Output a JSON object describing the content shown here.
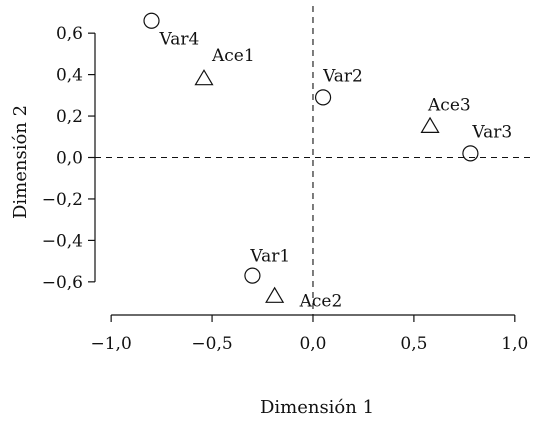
{
  "chart_data": {
    "type": "scatter",
    "title": "",
    "xlabel": "Dimensión 1",
    "ylabel": "Dimensión 2",
    "xlim": [
      -1.08,
      1.1
    ],
    "ylim": [
      -0.76,
      0.76
    ],
    "grid": false,
    "reference_lines": {
      "x": 0.0,
      "y": 0.0,
      "style": "dashed"
    },
    "x_ticks": [
      {
        "value": -1.0,
        "label": "−1,0"
      },
      {
        "value": -0.5,
        "label": "−0,5"
      },
      {
        "value": 0.0,
        "label": "0,0"
      },
      {
        "value": 0.5,
        "label": "0,5"
      },
      {
        "value": 1.0,
        "label": "1,0"
      }
    ],
    "y_ticks": [
      {
        "value": 0.6,
        "label": "0,6"
      },
      {
        "value": 0.4,
        "label": "0,4"
      },
      {
        "value": 0.2,
        "label": "0,2"
      },
      {
        "value": 0.0,
        "label": "0,0"
      },
      {
        "value": -0.2,
        "label": "−0,2"
      },
      {
        "value": -0.4,
        "label": "−0,4"
      },
      {
        "value": -0.6,
        "label": "−0,6"
      }
    ],
    "points": [
      {
        "label": "Var1",
        "x": -0.3,
        "y": -0.57,
        "marker": "circle"
      },
      {
        "label": "Var2",
        "x": 0.05,
        "y": 0.29,
        "marker": "circle"
      },
      {
        "label": "Var3",
        "x": 0.78,
        "y": 0.02,
        "marker": "circle"
      },
      {
        "label": "Var4",
        "x": -0.8,
        "y": 0.66,
        "marker": "circle"
      },
      {
        "label": "Ace1",
        "x": -0.54,
        "y": 0.38,
        "marker": "triangle"
      },
      {
        "label": "Ace2",
        "x": -0.19,
        "y": -0.67,
        "marker": "triangle"
      },
      {
        "label": "Ace3",
        "x": 0.58,
        "y": 0.15,
        "marker": "triangle"
      }
    ]
  }
}
